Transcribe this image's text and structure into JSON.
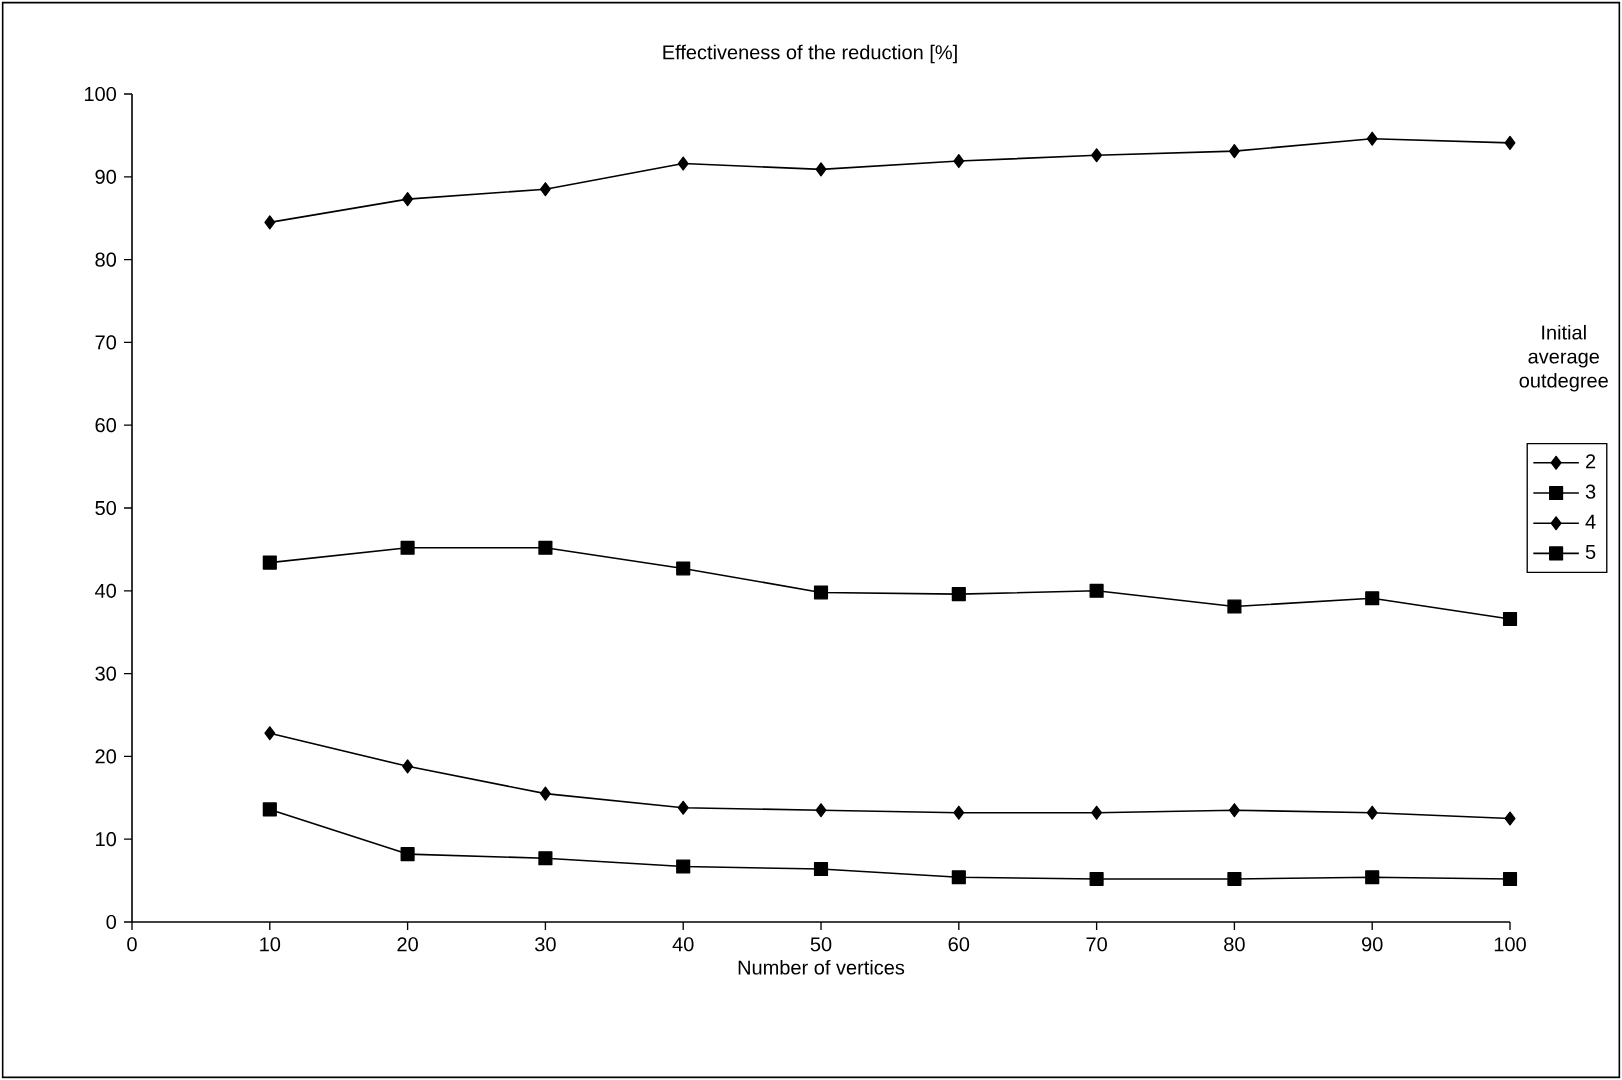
{
  "chart_data": {
    "type": "line",
    "title": "Effectiveness of the reduction [%]",
    "xlabel": "Number of vertices",
    "legend_title": "Initial average outdegree",
    "x": [
      10,
      20,
      30,
      40,
      50,
      60,
      70,
      80,
      90,
      100
    ],
    "series": [
      {
        "name": "2",
        "color": "#000000",
        "marker": "diamond",
        "values": [
          84.5,
          87.3,
          88.5,
          91.6,
          90.9,
          91.9,
          92.6,
          93.1,
          94.6,
          94.1
        ]
      },
      {
        "name": "3",
        "color": "#000000",
        "marker": "square",
        "values": [
          43.4,
          45.2,
          45.2,
          42.7,
          39.8,
          39.6,
          40.0,
          38.1,
          39.1,
          36.6
        ]
      },
      {
        "name": "4",
        "color": "#000000",
        "marker": "diamond",
        "values": [
          22.8,
          18.8,
          15.5,
          13.8,
          13.5,
          13.2,
          13.2,
          13.5,
          13.2,
          12.5
        ]
      },
      {
        "name": "5",
        "color": "#000000",
        "marker": "square",
        "values": [
          13.6,
          8.2,
          7.7,
          6.7,
          6.4,
          5.4,
          5.2,
          5.2,
          5.4,
          5.2
        ]
      }
    ],
    "xlim": [
      0,
      100
    ],
    "xticks": [
      0,
      10,
      20,
      30,
      40,
      50,
      60,
      70,
      80,
      90,
      100
    ],
    "ylim": [
      0,
      100
    ],
    "yticks": [
      0,
      10,
      20,
      30,
      40,
      50,
      60,
      70,
      80,
      90,
      100
    ],
    "grid": false,
    "legend": "right",
    "line_style": "solid"
  }
}
